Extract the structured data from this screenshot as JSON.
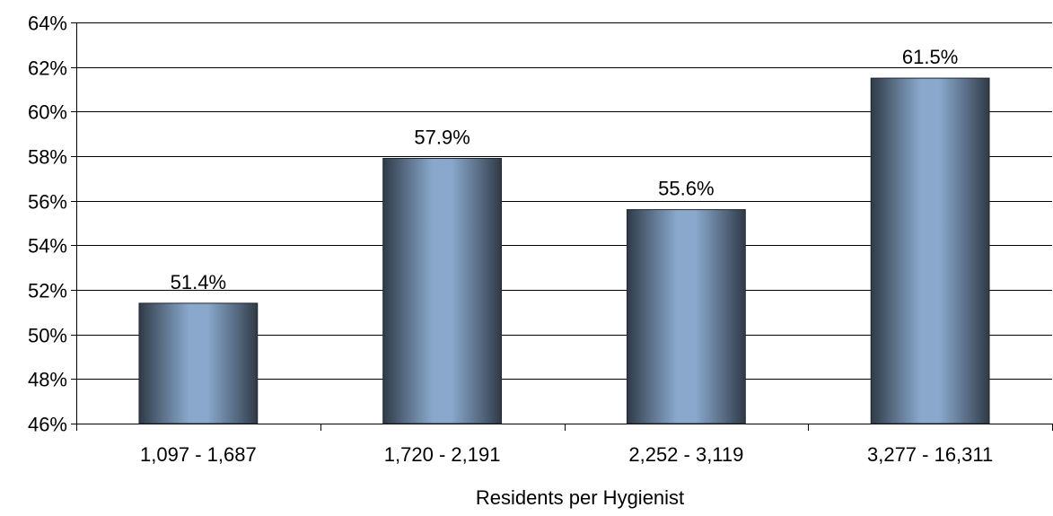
{
  "chart_data": {
    "type": "bar",
    "categories": [
      "1,097 - 1,687",
      "1,720 - 2,191",
      "2,252 - 3,119",
      "3,277 - 16,311"
    ],
    "values": [
      51.4,
      57.9,
      55.6,
      61.5
    ],
    "data_labels": [
      "51.4%",
      "57.9%",
      "55.6%",
      "61.5%"
    ],
    "title": "",
    "xlabel": "Residents per Hygienist",
    "ylabel": "",
    "ylim": [
      46,
      64
    ],
    "yticks": [
      46,
      48,
      50,
      52,
      54,
      56,
      58,
      60,
      62,
      64
    ],
    "ytick_labels": [
      "46%",
      "48%",
      "50%",
      "52%",
      "54%",
      "56%",
      "58%",
      "60%",
      "62%",
      "64%"
    ],
    "grid": true,
    "legend": "none",
    "colors": {
      "bar_edge": "#2e3a48",
      "bar_light": "#89a8cc",
      "bar_dark": "#34404e",
      "grid": "#000000"
    }
  }
}
